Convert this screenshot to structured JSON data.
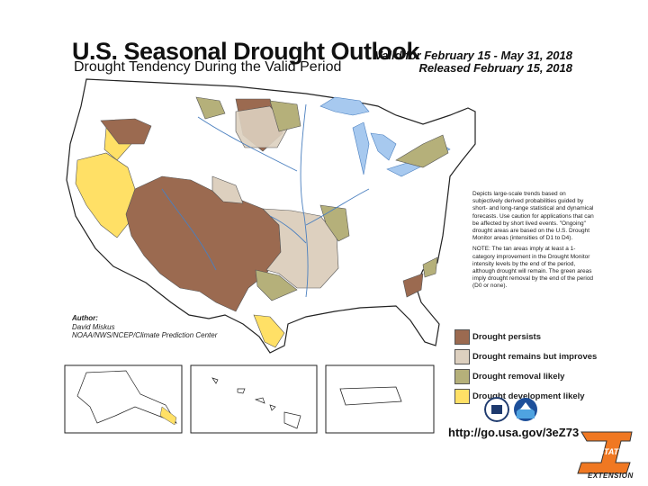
{
  "header": {
    "title": "U.S. Seasonal Drought Outlook",
    "subtitle": "Drought Tendency During the Valid Period",
    "valid": "Valid for February 15 - May 31, 2018",
    "released": "Released February 15, 2018"
  },
  "notes": {
    "p1": "Depicts large-scale trends based on subjectively derived probabilities guided by short- and long-range statistical and dynamical forecasts. Use caution for applications that can be affected by short lived events. \"Ongoing\" drought areas are based on the U.S. Drought Monitor areas (intensities of D1 to D4).",
    "p2": "NOTE: The tan areas imply at least a 1-category improvement in the Drought Monitor intensity levels by the end of the period, although drought will remain. The green areas imply drought removal by the end of the period (D0 or none)."
  },
  "author": {
    "heading": "Author:",
    "name": "David Miskus",
    "org": "NOAA/NWS/NCEP/Climate Prediction Center"
  },
  "legend": [
    {
      "label": "Drought persists",
      "color": "#9b6a50"
    },
    {
      "label": "Drought remains but improves",
      "color": "#ddd0bf"
    },
    {
      "label": "Drought removal likely",
      "color": "#b5b07a"
    },
    {
      "label": "Drought development likely",
      "color": "#ffe066"
    }
  ],
  "url": "http://go.usa.gov/3eZ73",
  "logo": {
    "word": "STATE",
    "tagline": "EXTENSION"
  },
  "icons": [
    "usda-seal-icon",
    "noaa-logo-icon"
  ]
}
